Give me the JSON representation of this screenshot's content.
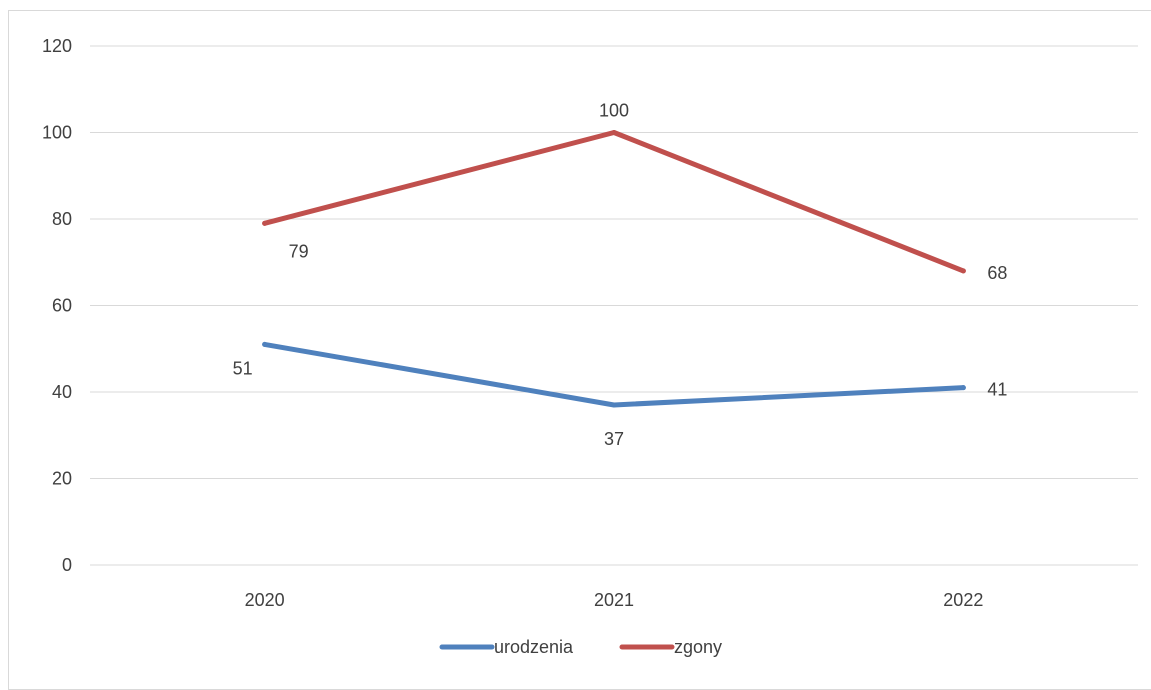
{
  "chart_data": {
    "type": "line",
    "categories": [
      "2020",
      "2021",
      "2022"
    ],
    "series": [
      {
        "name": "urodzenia",
        "color": "#4f81bd",
        "values": [
          51,
          37,
          41
        ]
      },
      {
        "name": "zgony",
        "color": "#c0504d",
        "values": [
          79,
          100,
          68
        ]
      }
    ],
    "title": "",
    "xlabel": "",
    "ylabel": "",
    "ylim": [
      0,
      120
    ],
    "yticks": [
      0,
      20,
      40,
      60,
      80,
      100,
      120
    ],
    "grid": true,
    "legend": "bottom"
  }
}
